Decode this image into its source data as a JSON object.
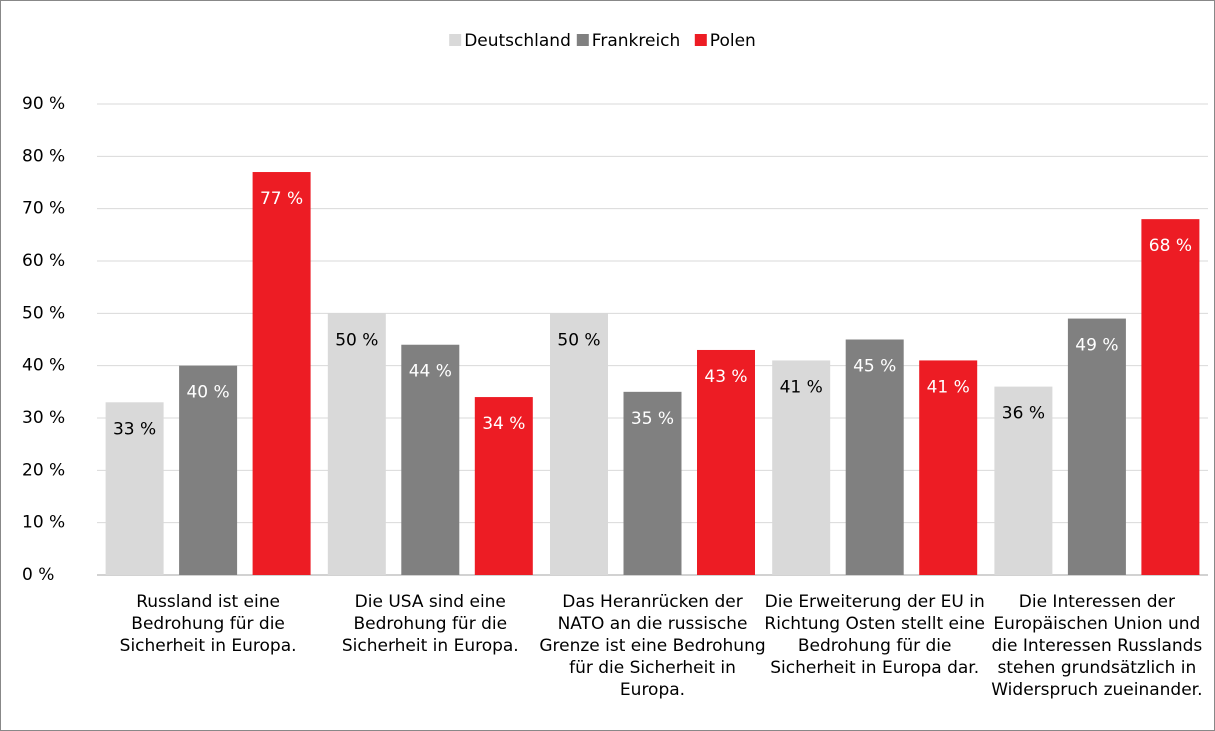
{
  "chart_data": {
    "type": "bar",
    "categories": [
      "Russland ist eine Bedrohung für die Sicherheit in Europa.",
      "Die USA sind eine Bedrohung für die Sicherheit in Europa.",
      "Das Heranrücken der NATO an die russische Grenze ist eine Bedrohung für die Sicherheit in Europa.",
      "Die Erweiterung der EU in Richtung Osten stellt eine Bedrohung für die Sicherheit in Europa dar.",
      "Die Interessen der Europäischen Union und die Interessen Russlands stehen grundsätzlich in Widerspruch zueinander."
    ],
    "series": [
      {
        "name": "Deutschland",
        "color": "#d9d9d9",
        "values": [
          33,
          50,
          50,
          41,
          36
        ],
        "value_labels": [
          "33 %",
          "50 %",
          "50 %",
          "41 %",
          "36 %"
        ]
      },
      {
        "name": "Frankreich",
        "color": "#808080",
        "values": [
          40,
          44,
          35,
          45,
          49
        ],
        "value_labels": [
          "40 %",
          "44 %",
          "35 %",
          "45 %",
          "49 %"
        ]
      },
      {
        "name": "Polen",
        "color": "#ed1c24",
        "values": [
          77,
          34,
          43,
          41,
          68
        ],
        "value_labels": [
          "77 %",
          "34 %",
          "43 %",
          "41 %",
          "68 %"
        ]
      }
    ],
    "ylim": [
      0,
      90
    ],
    "yticks": [
      {
        "value": 0,
        "label": "0 %"
      },
      {
        "value": 10,
        "label": "10 %"
      },
      {
        "value": 20,
        "label": "20 %"
      },
      {
        "value": 30,
        "label": "30 %"
      },
      {
        "value": 40,
        "label": "40 %"
      },
      {
        "value": 50,
        "label": "50 %"
      },
      {
        "value": 60,
        "label": "60 %"
      },
      {
        "value": 70,
        "label": "70 %"
      },
      {
        "value": 80,
        "label": "80 %"
      },
      {
        "value": 90,
        "label": "90 %"
      }
    ],
    "grid": true,
    "legend": "top"
  }
}
